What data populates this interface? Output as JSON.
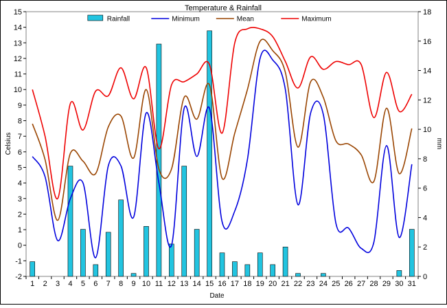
{
  "chart_data": {
    "type": "bar+line",
    "title": "Temperature & Rainfall",
    "xlabel": "Date",
    "ylabel_left": "Celsius",
    "ylabel_right": "mm",
    "ylim_left": [
      -2,
      15
    ],
    "ylim_right": [
      0,
      18
    ],
    "grid": false,
    "legend_position": "top",
    "categories": [
      "1",
      "2",
      "3",
      "4",
      "5",
      "6",
      "7",
      "8",
      "9",
      "10",
      "11",
      "12",
      "13",
      "14",
      "15",
      "16",
      "17",
      "18",
      "19",
      "20",
      "21",
      "22",
      "23",
      "24",
      "25",
      "26",
      "27",
      "28",
      "29",
      "30",
      "31"
    ],
    "series": [
      {
        "name": "Rainfall",
        "kind": "bar",
        "axis": "right",
        "color": "#22c4e0",
        "values": [
          1.0,
          0,
          0,
          7.5,
          3.2,
          0.8,
          3.0,
          5.2,
          0.2,
          3.4,
          15.8,
          2.2,
          7.5,
          3.2,
          16.7,
          1.6,
          1.0,
          0.8,
          1.6,
          0.8,
          2.0,
          0.2,
          0,
          0.2,
          0,
          0,
          0,
          0,
          0,
          0.4,
          3.2
        ]
      },
      {
        "name": "Minimum",
        "kind": "line",
        "axis": "left",
        "color": "#0000dd",
        "values": [
          5.7,
          4.4,
          0.3,
          3.0,
          4.0,
          -0.8,
          5.1,
          5.1,
          1.8,
          8.5,
          4.0,
          0.0,
          8.8,
          5.7,
          8.8,
          1.5,
          2.2,
          5.5,
          12.0,
          11.9,
          10.0,
          2.6,
          8.5,
          8.4,
          1.4,
          1.1,
          -0.2,
          0.2,
          6.4,
          0.5,
          5.2
        ]
      },
      {
        "name": "Mean",
        "kind": "line",
        "axis": "left",
        "color": "#994400",
        "values": [
          7.8,
          5.5,
          1.6,
          5.9,
          5.4,
          4.6,
          7.6,
          8.3,
          5.6,
          10.0,
          4.9,
          4.9,
          9.5,
          8.1,
          10.3,
          4.3,
          7.2,
          10.0,
          13.1,
          12.5,
          11.1,
          6.3,
          10.5,
          9.5,
          6.7,
          6.5,
          5.8,
          4.1,
          8.8,
          4.6,
          7.5
        ]
      },
      {
        "name": "Maximum",
        "kind": "line",
        "axis": "left",
        "color": "#ee0000",
        "values": [
          10.0,
          7.0,
          3.0,
          9.1,
          7.4,
          9.9,
          9.6,
          11.4,
          9.4,
          11.4,
          6.2,
          10.3,
          10.5,
          11.0,
          11.6,
          7.2,
          13.0,
          13.9,
          13.9,
          13.4,
          11.8,
          10.1,
          12.1,
          11.3,
          11.8,
          11.6,
          11.6,
          8.2,
          11.1,
          8.6,
          9.7
        ]
      }
    ],
    "ticks_left": [
      "-2",
      "-1",
      "0",
      "1",
      "2",
      "3",
      "4",
      "5",
      "6",
      "7",
      "8",
      "9",
      "10",
      "11",
      "12",
      "13",
      "14",
      "15"
    ],
    "ticks_right": [
      "0",
      "2",
      "4",
      "6",
      "8",
      "10",
      "12",
      "14",
      "16",
      "18"
    ]
  }
}
